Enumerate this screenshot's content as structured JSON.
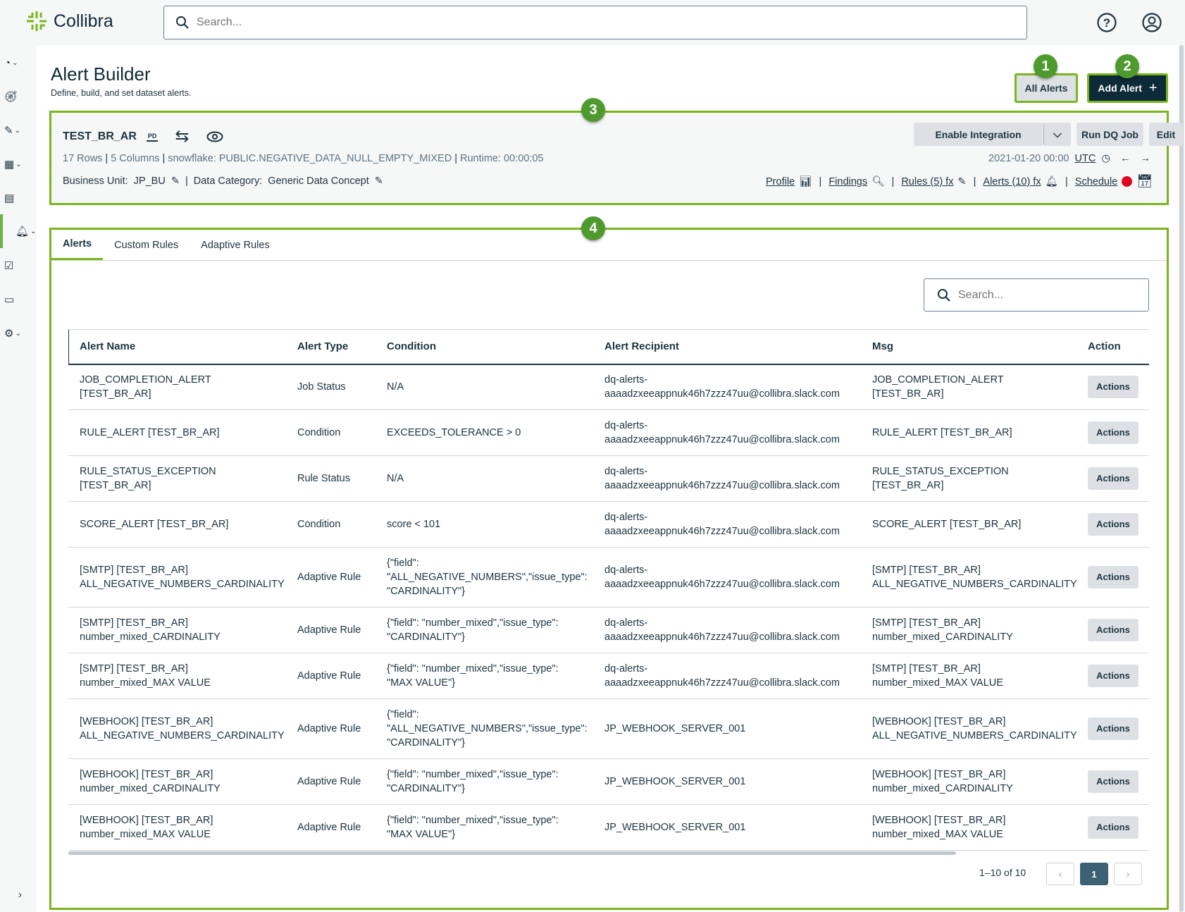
{
  "app": {
    "brand": "Collibra",
    "search_placeholder": "Search..."
  },
  "page": {
    "title": "Alert Builder",
    "subtitle": "Define, build, and set dataset alerts.",
    "all_alerts": "All Alerts",
    "add_alert": "Add Alert"
  },
  "callouts": [
    "1",
    "2",
    "3",
    "4"
  ],
  "dataset": {
    "name": "TEST_BR_AR",
    "pd_badge": "PD",
    "rows": "17 Rows",
    "columns": "5 Columns",
    "source": "snowflake: PUBLIC.NEGATIVE_DATA_NULL_EMPTY_MIXED",
    "runtime": "Runtime: 00:00:05",
    "business_unit_label": "Business Unit:",
    "business_unit": "JP_BU",
    "data_category_label": "Data Category:",
    "data_category": "Generic Data Concept",
    "enable_integration": "Enable Integration",
    "run_dq_job": "Run DQ Job",
    "edit": "Edit",
    "date": "2021-01-20 00:00",
    "timezone": "UTC",
    "links": {
      "profile": "Profile",
      "findings": "Findings",
      "rules": "Rules (5) fx",
      "alerts": "Alerts (10) fx",
      "schedule": "Schedule"
    }
  },
  "tabs": [
    {
      "label": "Alerts",
      "active": true
    },
    {
      "label": "Custom Rules"
    },
    {
      "label": "Adaptive Rules"
    }
  ],
  "table": {
    "search_placeholder": "Search...",
    "columns": [
      "Alert Name",
      "Alert Type",
      "Condition",
      "Alert Recipient",
      "Msg",
      "Action"
    ],
    "rows": [
      {
        "name": "JOB_COMPLETION_ALERT\n[TEST_BR_AR]",
        "type": "Job Status",
        "condition": "N/A",
        "recipient": "dq-alerts-\naaaadzxeeappnuk46h7zzz47uu@collibra.slack.com",
        "msg": "JOB_COMPLETION_ALERT\n[TEST_BR_AR]",
        "action": "Actions"
      },
      {
        "name": "RULE_ALERT [TEST_BR_AR]",
        "type": "Condition",
        "condition": "EXCEEDS_TOLERANCE > 0",
        "recipient": "dq-alerts-\naaaadzxeeappnuk46h7zzz47uu@collibra.slack.com",
        "msg": "RULE_ALERT [TEST_BR_AR]",
        "action": "Actions"
      },
      {
        "name": "RULE_STATUS_EXCEPTION\n[TEST_BR_AR]",
        "type": "Rule Status",
        "condition": "N/A",
        "recipient": "dq-alerts-\naaaadzxeeappnuk46h7zzz47uu@collibra.slack.com",
        "msg": "RULE_STATUS_EXCEPTION\n[TEST_BR_AR]",
        "action": "Actions"
      },
      {
        "name": "SCORE_ALERT [TEST_BR_AR]",
        "type": "Condition",
        "condition": "score < 101",
        "recipient": "dq-alerts-\naaaadzxeeappnuk46h7zzz47uu@collibra.slack.com",
        "msg": "SCORE_ALERT [TEST_BR_AR]",
        "action": "Actions"
      },
      {
        "name": "[SMTP] [TEST_BR_AR]\nALL_NEGATIVE_NUMBERS_CARDINALITY",
        "type": "Adaptive Rule",
        "condition": "{\"field\":\n\"ALL_NEGATIVE_NUMBERS\",\"issue_type\":\n\"CARDINALITY\"}",
        "recipient": "dq-alerts-\naaaadzxeeappnuk46h7zzz47uu@collibra.slack.com",
        "msg": "[SMTP] [TEST_BR_AR]\nALL_NEGATIVE_NUMBERS_CARDINALITY",
        "action": "Actions"
      },
      {
        "name": "[SMTP] [TEST_BR_AR]\nnumber_mixed_CARDINALITY",
        "type": "Adaptive Rule",
        "condition": "{\"field\": \"number_mixed\",\"issue_type\":\n\"CARDINALITY\"}",
        "recipient": "dq-alerts-\naaaadzxeeappnuk46h7zzz47uu@collibra.slack.com",
        "msg": "[SMTP] [TEST_BR_AR]\nnumber_mixed_CARDINALITY",
        "action": "Actions"
      },
      {
        "name": "[SMTP] [TEST_BR_AR]\nnumber_mixed_MAX VALUE",
        "type": "Adaptive Rule",
        "condition": "{\"field\": \"number_mixed\",\"issue_type\":\n\"MAX VALUE\"}",
        "recipient": "dq-alerts-\naaaadzxeeappnuk46h7zzz47uu@collibra.slack.com",
        "msg": "[SMTP] [TEST_BR_AR]\nnumber_mixed_MAX VALUE",
        "action": "Actions"
      },
      {
        "name": "[WEBHOOK] [TEST_BR_AR]\nALL_NEGATIVE_NUMBERS_CARDINALITY",
        "type": "Adaptive Rule",
        "condition": "{\"field\":\n\"ALL_NEGATIVE_NUMBERS\",\"issue_type\":\n\"CARDINALITY\"}",
        "recipient": "JP_WEBHOOK_SERVER_001",
        "msg": "[WEBHOOK] [TEST_BR_AR]\nALL_NEGATIVE_NUMBERS_CARDINALITY",
        "action": "Actions"
      },
      {
        "name": "[WEBHOOK] [TEST_BR_AR]\nnumber_mixed_CARDINALITY",
        "type": "Adaptive Rule",
        "condition": "{\"field\": \"number_mixed\",\"issue_type\":\n\"CARDINALITY\"}",
        "recipient": "JP_WEBHOOK_SERVER_001",
        "msg": "[WEBHOOK] [TEST_BR_AR]\nnumber_mixed_CARDINALITY",
        "action": "Actions"
      },
      {
        "name": "[WEBHOOK] [TEST_BR_AR]\nnumber_mixed_MAX VALUE",
        "type": "Adaptive Rule",
        "condition": "{\"field\": \"number_mixed\",\"issue_type\":\n\"MAX VALUE\"}",
        "recipient": "JP_WEBHOOK_SERVER_001",
        "msg": "[WEBHOOK] [TEST_BR_AR]\nnumber_mixed_MAX VALUE",
        "action": "Actions"
      }
    ],
    "pagination": {
      "range": "1–10 of 10",
      "current": "1"
    }
  },
  "colors": {
    "accent_green": "#7ab51d",
    "badge_green": "#4f9a2f",
    "primary_dark": "#0d2a38",
    "page_active": "#3d6174",
    "status_red": "#e0001b"
  }
}
